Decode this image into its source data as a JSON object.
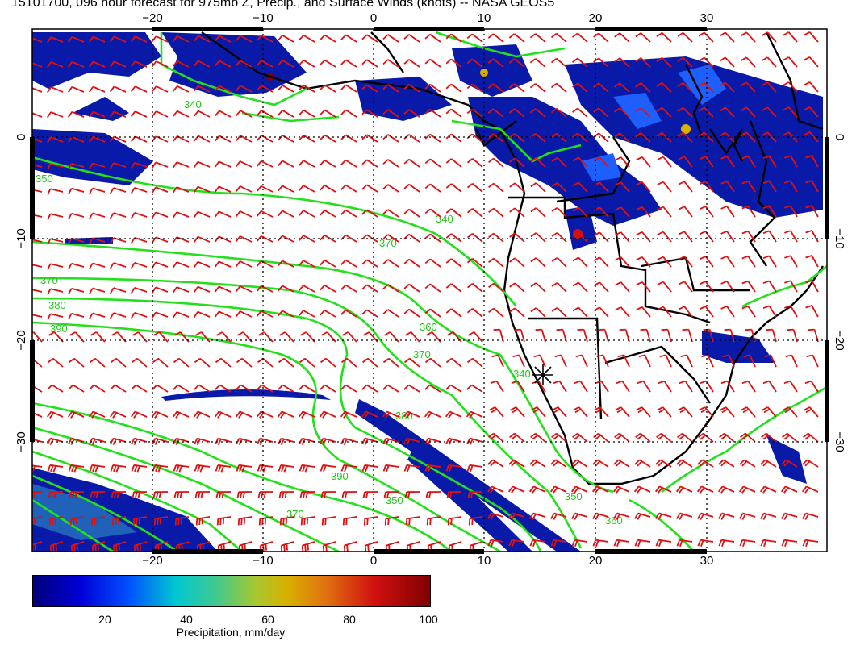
{
  "title": "15101700, 096 hour forecast for 975mb Z, Precip., and Surface Winds (knots) -- NASA GEOS5",
  "map": {
    "lon_ticks": [
      "−20",
      "−10",
      "0",
      "10",
      "20",
      "30"
    ],
    "lat_ticks_left": [
      "0",
      "−10",
      "−20",
      "−30"
    ],
    "lat_ticks_right": [
      "0",
      "−10",
      "−20",
      "−30"
    ],
    "contour_labels": [
      "340",
      "350",
      "360",
      "370",
      "380",
      "390"
    ],
    "contour_color": "#22e01a",
    "wind_barb_color": "#e01010",
    "coast_color": "#000000"
  },
  "colorbar": {
    "title": "Precipitation, mm/day",
    "ticks": [
      "20",
      "40",
      "60",
      "80",
      "100"
    ],
    "colors": [
      "#00007a",
      "#0000d8",
      "#0050ff",
      "#00c8d0",
      "#a8c830",
      "#d8b000",
      "#e07010",
      "#d01010",
      "#800000"
    ]
  }
}
